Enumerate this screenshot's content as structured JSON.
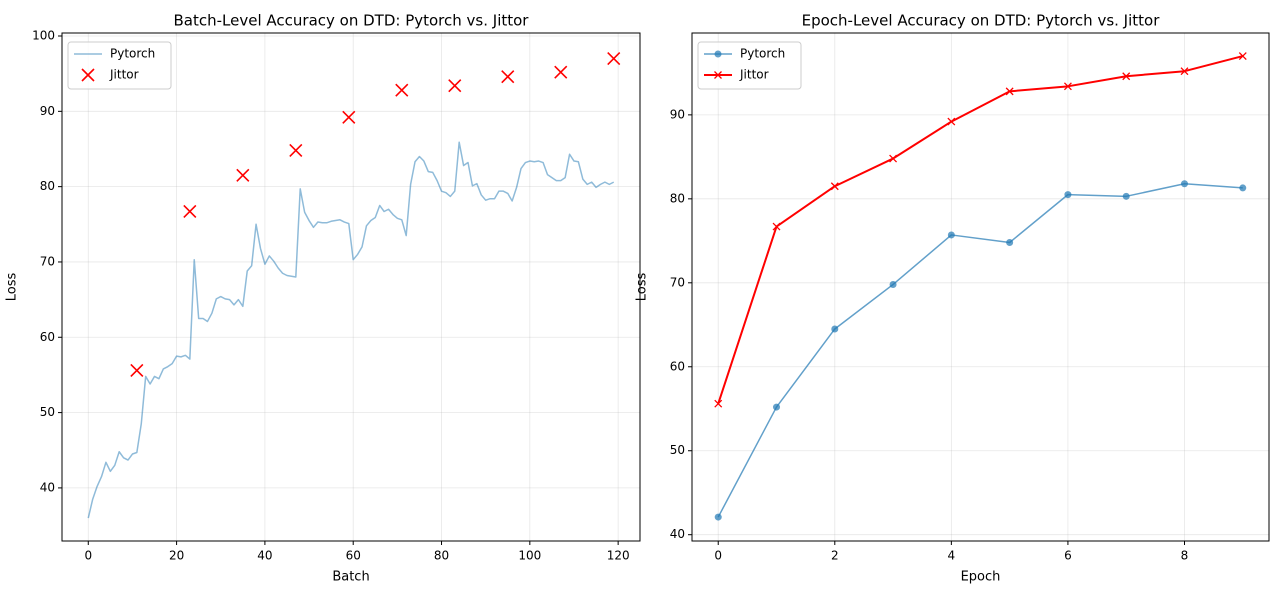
{
  "chart_data": [
    {
      "type": "line",
      "title": "Batch-Level Accuracy on DTD: Pytorch vs. Jittor",
      "xlabel": "Batch",
      "ylabel": "Loss",
      "xlim": [
        -5.95,
        124.95
      ],
      "ylim": [
        32.95,
        100.4
      ],
      "xticks": [
        0,
        20,
        40,
        60,
        80,
        100,
        120
      ],
      "yticks": [
        40,
        50,
        60,
        70,
        80,
        90,
        100
      ],
      "grid": true,
      "legend": "upper left",
      "series": [
        {
          "name": "Pytorch",
          "color": "#1f77b4",
          "opacity": 0.5,
          "style": "line",
          "linewidth": 1.5,
          "x": [
            0,
            1,
            2,
            3,
            4,
            5,
            6,
            7,
            8,
            9,
            10,
            11,
            12,
            13,
            14,
            15,
            16,
            17,
            18,
            19,
            20,
            21,
            22,
            23,
            24,
            25,
            26,
            27,
            28,
            29,
            30,
            31,
            32,
            33,
            34,
            35,
            36,
            37,
            38,
            39,
            40,
            41,
            42,
            43,
            44,
            45,
            46,
            47,
            48,
            49,
            50,
            51,
            52,
            53,
            54,
            55,
            56,
            57,
            58,
            59,
            60,
            61,
            62,
            63,
            64,
            65,
            66,
            67,
            68,
            69,
            70,
            71,
            72,
            73,
            74,
            75,
            76,
            77,
            78,
            79,
            80,
            81,
            82,
            83,
            84,
            85,
            86,
            87,
            88,
            89,
            90,
            91,
            92,
            93,
            94,
            95,
            96,
            97,
            98,
            99,
            100,
            101,
            102,
            103,
            104,
            105,
            106,
            107,
            108,
            109,
            110,
            111,
            112,
            113,
            114,
            115,
            116,
            117,
            118,
            119
          ],
          "values": [
            36.0,
            38.5,
            40.2,
            41.5,
            43.4,
            42.2,
            43.0,
            44.8,
            44.0,
            43.7,
            44.5,
            44.7,
            48.5,
            54.8,
            53.8,
            54.8,
            54.5,
            55.8,
            56.1,
            56.5,
            57.5,
            57.4,
            57.6,
            57.1,
            70.3,
            62.5,
            62.5,
            62.1,
            63.2,
            65.1,
            65.4,
            65.1,
            65.0,
            64.3,
            65.0,
            64.1,
            68.8,
            69.5,
            75.0,
            71.8,
            69.7,
            70.8,
            70.1,
            69.2,
            68.5,
            68.2,
            68.1,
            68.0,
            79.7,
            76.6,
            75.5,
            74.6,
            75.3,
            75.2,
            75.2,
            75.4,
            75.5,
            75.6,
            75.3,
            75.1,
            70.3,
            71.0,
            72.0,
            74.8,
            75.5,
            75.9,
            77.5,
            76.7,
            77.0,
            76.3,
            75.8,
            75.6,
            73.5,
            80.3,
            83.3,
            84.0,
            83.4,
            82.0,
            81.9,
            80.8,
            79.4,
            79.2,
            78.7,
            79.4,
            85.9,
            82.8,
            83.2,
            80.1,
            80.4,
            78.9,
            78.2,
            78.4,
            78.4,
            79.4,
            79.4,
            79.1,
            78.1,
            79.9,
            82.4,
            83.2,
            83.4,
            83.3,
            83.4,
            83.2,
            81.6,
            81.2,
            80.8,
            80.8,
            81.2,
            84.3,
            83.4,
            83.3,
            81.0,
            80.3,
            80.6,
            79.9,
            80.3,
            80.6,
            80.3,
            80.6
          ]
        },
        {
          "name": "Jittor",
          "color": "#ff0000",
          "opacity": 1,
          "style": "scatter",
          "marker": "x",
          "markersize": 12,
          "x": [
            11,
            23,
            35,
            47,
            59,
            71,
            83,
            95,
            107,
            119
          ],
          "values": [
            55.6,
            76.7,
            81.5,
            84.8,
            89.2,
            92.8,
            93.4,
            94.6,
            95.2,
            97.0
          ]
        }
      ]
    },
    {
      "type": "line",
      "title": "Epoch-Level Accuracy on DTD: Pytorch vs. Jittor",
      "xlabel": "Epoch",
      "ylabel": "Loss",
      "xlim": [
        -0.45,
        9.45
      ],
      "ylim": [
        39.25,
        99.75
      ],
      "xticks": [
        0,
        2,
        4,
        6,
        8
      ],
      "yticks": [
        40,
        50,
        60,
        70,
        80,
        90
      ],
      "grid": true,
      "legend": "upper left",
      "series": [
        {
          "name": "Pytorch",
          "color": "#1f77b4",
          "opacity": 0.7,
          "style": "line",
          "marker": "o",
          "linewidth": 1.5,
          "markersize": 8,
          "x": [
            0,
            1,
            2,
            3,
            4,
            5,
            6,
            7,
            8,
            9
          ],
          "values": [
            42.1,
            55.2,
            64.5,
            69.8,
            75.7,
            74.8,
            80.5,
            80.3,
            81.8,
            81.3
          ]
        },
        {
          "name": "Jittor",
          "color": "#ff0000",
          "opacity": 1,
          "style": "line",
          "marker": "x",
          "linewidth": 2,
          "markersize": 7,
          "x": [
            0,
            1,
            2,
            3,
            4,
            5,
            6,
            7,
            8,
            9
          ],
          "values": [
            55.6,
            76.7,
            81.5,
            84.8,
            89.2,
            92.8,
            93.4,
            94.6,
            95.2,
            97.0
          ]
        }
      ]
    }
  ]
}
